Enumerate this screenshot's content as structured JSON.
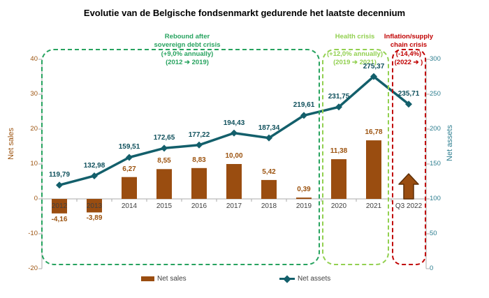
{
  "title": "Evolutie van de Belgische fondsenmarkt gedurende het laatste decennium",
  "left_axis": {
    "title": "Net sales",
    "ticks": [
      40,
      30,
      20,
      10,
      0,
      -10,
      -20
    ],
    "min": -20,
    "max": 40
  },
  "right_axis": {
    "title": "Net assets",
    "ticks": [
      300,
      250,
      200,
      150,
      100,
      50,
      0
    ],
    "min": 0,
    "max": 300
  },
  "annotations": {
    "rebound": {
      "line1": "Rebound after",
      "line2": "sovereign debt crisis",
      "line3": "(+9,0% annually)",
      "line4": "(2012 ➔ 2019)",
      "color": "#27A35F"
    },
    "health": {
      "line1": "Health crisis",
      "line3": "(+12,0% annually)",
      "line4": "(2019 ➔ 2021)",
      "color": "#92D050"
    },
    "inflation": {
      "line1": "Inflation/supply",
      "line2": "chain crisis",
      "line3": "(-14,4%)",
      "line4": "(2022 ➔ )",
      "color": "#C00000"
    }
  },
  "legend": {
    "net_sales": "Net sales",
    "net_assets": "Net assets"
  },
  "colors": {
    "bar": "#9A4D10",
    "bar_outline": "#5E2F07",
    "bar_label": "#9C530F",
    "line": "#135F6B",
    "line_label": "#0F505C",
    "left_axis_text": "#9C530F",
    "right_axis_text": "#2C7D8F",
    "axis_line": "#ABABAB",
    "year_label": "#404040",
    "green": "#27A35F",
    "light_green": "#92D050",
    "red": "#C00000"
  },
  "chart_data": {
    "type": "combo bar+line, dual axis",
    "categories": [
      "2012",
      "2013",
      "2014",
      "2015",
      "2016",
      "2017",
      "2018",
      "2019",
      "2020",
      "2021",
      "Q3 2022"
    ],
    "series": [
      {
        "name": "Net sales",
        "type": "bar",
        "axis": "left",
        "values": [
          -4.16,
          -3.89,
          6.27,
          8.55,
          8.83,
          10.0,
          5.42,
          0.39,
          11.38,
          16.78,
          null
        ],
        "labels": [
          "-4,16",
          "-3,89",
          "6,27",
          "8,55",
          "8,83",
          "10,00",
          "5,42",
          "0,39",
          "11,38",
          "16,78",
          ""
        ]
      },
      {
        "name": "Net assets",
        "type": "line",
        "axis": "right",
        "values": [
          119.79,
          132.98,
          159.51,
          172.65,
          177.22,
          194.43,
          187.34,
          219.61,
          231.75,
          275.37,
          235.71
        ],
        "labels": [
          "119,79",
          "132,98",
          "159,51",
          "172,65",
          "177,22",
          "194,43",
          "187,34",
          "219,61",
          "231,75",
          "275,37",
          "235,71"
        ]
      }
    ],
    "left_ylim": [
      -20,
      40
    ],
    "right_ylim": [
      0,
      300
    ],
    "grid": "off",
    "legend_position": "bottom",
    "q3_2022_marker": {
      "shape": "block-arrow-up",
      "series": "Net sales",
      "value_label": "",
      "approx_height_units": 7.2
    }
  }
}
